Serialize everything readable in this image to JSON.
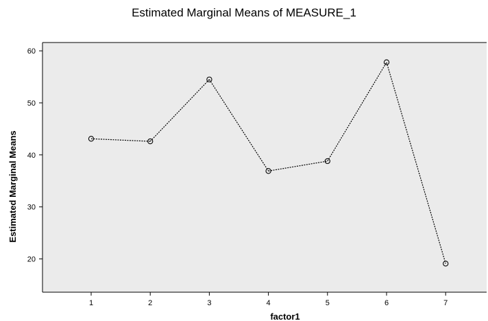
{
  "chart_data": {
    "type": "line",
    "title": "Estimated Marginal Means of MEASURE_1",
    "xlabel": "factor1",
    "ylabel": "Estimated Marginal Means",
    "categories": [
      "1",
      "2",
      "3",
      "4",
      "5",
      "6",
      "7"
    ],
    "series": [
      {
        "values": [
          43.1,
          42.6,
          54.5,
          36.9,
          38.8,
          57.8,
          19.1
        ]
      }
    ],
    "yticks": [
      "20",
      "30",
      "40",
      "50",
      "60"
    ],
    "ylim": [
      13.6,
      61.6
    ],
    "grid": false,
    "marker": "open-circle",
    "line_style": "dashed",
    "plot_background": "#ebebeb",
    "line_color": "#000000"
  }
}
